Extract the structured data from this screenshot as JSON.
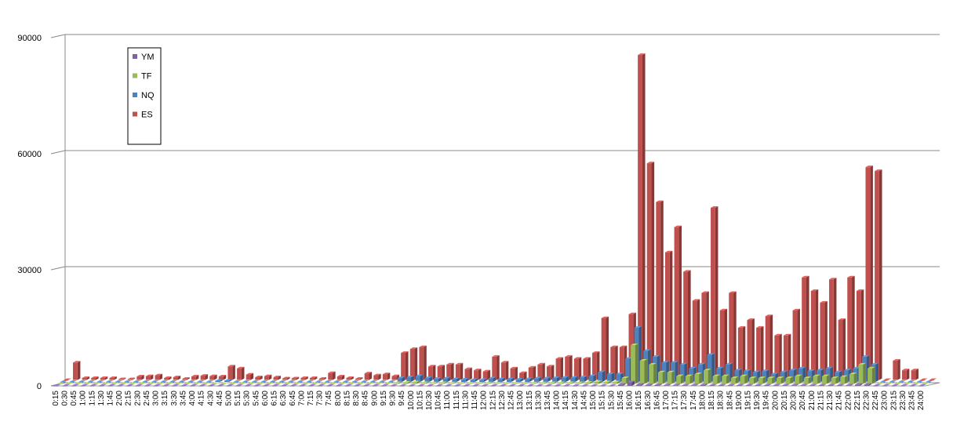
{
  "chart_data": {
    "type": "bar",
    "title": "",
    "xlabel": "",
    "ylabel": "",
    "ylim": [
      0,
      90000
    ],
    "yticks": [
      "0",
      "30000",
      "60000",
      "90000"
    ],
    "grid": true,
    "legend_position": "top-left",
    "categories": [
      "0:15",
      "0:30",
      "0:45",
      "1:00",
      "1:15",
      "1:30",
      "1:45",
      "2:00",
      "2:15",
      "2:30",
      "2:45",
      "3:00",
      "3:15",
      "3:30",
      "3:45",
      "4:00",
      "4:15",
      "4:30",
      "4:45",
      "5:00",
      "5:15",
      "5:30",
      "5:45",
      "6:00",
      "6:15",
      "6:30",
      "6:45",
      "7:00",
      "7:15",
      "7:30",
      "7:45",
      "8:00",
      "8:15",
      "8:30",
      "8:45",
      "9:00",
      "9:15",
      "9:30",
      "9:45",
      "10:00",
      "10:15",
      "10:30",
      "10:45",
      "11:00",
      "11:15",
      "11:30",
      "11:45",
      "12:00",
      "12:15",
      "12:30",
      "12:45",
      "13:00",
      "13:15",
      "13:30",
      "13:45",
      "14:00",
      "14:15",
      "14:30",
      "14:45",
      "15:00",
      "15:15",
      "15:30",
      "15:45",
      "16:00",
      "16:15",
      "16:30",
      "16:45",
      "17:00",
      "17:15",
      "17:30",
      "17:45",
      "18:00",
      "18:15",
      "18:30",
      "18:45",
      "19:00",
      "19:15",
      "19:30",
      "19:45",
      "20:00",
      "20:15",
      "20:30",
      "20:45",
      "21:00",
      "21:15",
      "21:30",
      "21:45",
      "22:00",
      "22:15",
      "22:30",
      "22:45",
      "23:00",
      "23:15",
      "23:30",
      "23:45",
      "24:00"
    ],
    "series": [
      {
        "name": "YM",
        "color": "#8064A2",
        "values": [
          0,
          0,
          0,
          0,
          0,
          0,
          0,
          0,
          0,
          0,
          0,
          0,
          0,
          0,
          0,
          0,
          0,
          0,
          0,
          0,
          0,
          0,
          0,
          0,
          0,
          0,
          0,
          0,
          0,
          0,
          0,
          0,
          0,
          0,
          0,
          0,
          0,
          0,
          0,
          0,
          0,
          0,
          0,
          0,
          0,
          0,
          0,
          0,
          0,
          0,
          0,
          0,
          0,
          0,
          0,
          0,
          0,
          0,
          0,
          0,
          0,
          0,
          300,
          900,
          300,
          200,
          200,
          150,
          150,
          100,
          150,
          200,
          100,
          100,
          100,
          100,
          100,
          100,
          100,
          100,
          100,
          150,
          100,
          100,
          100,
          100,
          100,
          150,
          300,
          300,
          0,
          0,
          0,
          0,
          0,
          0
        ]
      },
      {
        "name": "TF",
        "color": "#9BBB59",
        "values": [
          0,
          0,
          0,
          0,
          0,
          0,
          0,
          0,
          0,
          0,
          0,
          0,
          0,
          0,
          0,
          0,
          0,
          0,
          0,
          0,
          0,
          0,
          0,
          0,
          0,
          0,
          0,
          0,
          0,
          0,
          0,
          0,
          0,
          0,
          0,
          0,
          0,
          200,
          300,
          400,
          200,
          150,
          200,
          150,
          100,
          100,
          100,
          150,
          100,
          100,
          100,
          100,
          150,
          150,
          200,
          200,
          200,
          200,
          300,
          500,
          400,
          400,
          1500,
          10000,
          6000,
          5000,
          3000,
          3000,
          2000,
          2000,
          2500,
          3500,
          2000,
          2000,
          1500,
          2000,
          1500,
          1500,
          1500,
          1500,
          1500,
          2000,
          1500,
          2000,
          2000,
          1500,
          1800,
          2500,
          5000,
          4000,
          0,
          0,
          0,
          0,
          0,
          0
        ]
      },
      {
        "name": "NQ",
        "color": "#4F81BD",
        "values": [
          0,
          0,
          0,
          0,
          0,
          0,
          0,
          0,
          0,
          0,
          0,
          0,
          0,
          0,
          0,
          0,
          0,
          300,
          300,
          0,
          0,
          0,
          0,
          0,
          0,
          0,
          0,
          0,
          0,
          0,
          0,
          0,
          0,
          0,
          0,
          0,
          0,
          1000,
          1200,
          1500,
          1000,
          800,
          900,
          700,
          600,
          500,
          500,
          900,
          700,
          700,
          600,
          700,
          900,
          900,
          1000,
          1100,
          1100,
          1200,
          1500,
          2500,
          2000,
          2000,
          6000,
          14000,
          8000,
          6500,
          5000,
          5000,
          4500,
          3500,
          4500,
          7000,
          3500,
          4500,
          3000,
          2800,
          2500,
          2800,
          2000,
          2500,
          3000,
          3500,
          2800,
          3000,
          3500,
          2500,
          3000,
          3500,
          6500,
          4500,
          0,
          0,
          0,
          0,
          0,
          0
        ]
      },
      {
        "name": "ES",
        "color": "#C0504D",
        "values": [
          0,
          4500,
          500,
          500,
          500,
          500,
          200,
          200,
          900,
          1000,
          1200,
          500,
          700,
          300,
          900,
          1100,
          1000,
          900,
          3500,
          3000,
          1400,
          700,
          1000,
          700,
          400,
          400,
          500,
          500,
          300,
          1800,
          900,
          500,
          300,
          1700,
          1200,
          1500,
          1000,
          7000,
          8000,
          8500,
          3500,
          3500,
          4000,
          4000,
          2800,
          2500,
          2200,
          6000,
          4500,
          3000,
          1800,
          3200,
          4000,
          3500,
          5500,
          6000,
          5500,
          5500,
          7000,
          16000,
          8500,
          8500,
          17000,
          84000,
          56000,
          46000,
          33000,
          39500,
          28000,
          20500,
          22500,
          44500,
          18000,
          22500,
          13500,
          15500,
          13500,
          16500,
          11500,
          11500,
          18000,
          26500,
          23000,
          20000,
          26000,
          15500,
          26500,
          23000,
          55000,
          54000,
          0,
          5000,
          2500,
          2500,
          0,
          0
        ]
      }
    ]
  }
}
